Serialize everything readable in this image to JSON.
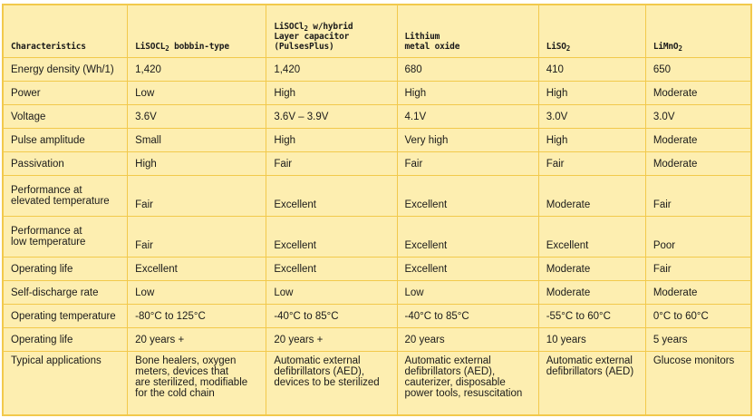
{
  "headers": {
    "characteristics": "Characteristics",
    "bobbin_main": "LiSOCL",
    "bobbin_sub": "2",
    "bobbin_tail": " bobbin-type",
    "hybrid_line1_main": "LiSOCl",
    "hybrid_line1_sub": "2",
    "hybrid_line1_tail": " w/hybrid",
    "hybrid_line2": "Layer capacitor",
    "hybrid_line3": "(PulsesPlus)",
    "lmo_line1": "Lithium",
    "lmo_line2": "metal oxide",
    "liso2_main": "LiSO",
    "liso2_sub": "2",
    "limno2_main": "LiMnO",
    "limno2_sub": "2"
  },
  "rows": [
    {
      "label": "Energy density (Wh/1)",
      "c1": "1,420",
      "c2": "1,420",
      "c3": "680",
      "c4": "410",
      "c5": "650"
    },
    {
      "label": "Power",
      "c1": "Low",
      "c2": "High",
      "c3": "High",
      "c4": "High",
      "c5": "Moderate"
    },
    {
      "label": "Voltage",
      "c1": "3.6V",
      "c2": "3.6V – 3.9V",
      "c3": "4.1V",
      "c4": "3.0V",
      "c5": "3.0V"
    },
    {
      "label": "Pulse amplitude",
      "c1": "Small",
      "c2": "High",
      "c3": "Very high",
      "c4": "High",
      "c5": "Moderate"
    },
    {
      "label": "Passivation",
      "c1": "High",
      "c2": "Fair",
      "c3": "Fair",
      "c4": "Fair",
      "c5": "Moderate"
    },
    {
      "label_line1": "Performance at",
      "label_line2": "elevated temperature",
      "c1": "Fair",
      "c2": "Excellent",
      "c3": "Excellent",
      "c4": "Moderate",
      "c5": "Fair"
    },
    {
      "label_line1": "Performance at",
      "label_line2": "low temperature",
      "c1": "Fair",
      "c2": "Excellent",
      "c3": "Excellent",
      "c4": "Excellent",
      "c5": "Poor"
    },
    {
      "label": "Operating life",
      "c1": "Excellent",
      "c2": "Excellent",
      "c3": "Excellent",
      "c4": "Moderate",
      "c5": "Fair"
    },
    {
      "label": "Self-discharge rate",
      "c1": "Low",
      "c2": "Low",
      "c3": "Low",
      "c4": "Moderate",
      "c5": "Moderate"
    },
    {
      "label": "Operating temperature",
      "c1": "-80°C to 125°C",
      "c2": "-40°C to 85°C",
      "c3": "-40°C to 85°C",
      "c4": "-55°C to 60°C",
      "c5": "0°C to 60°C"
    },
    {
      "label": "Operating life",
      "c1": "20 years +",
      "c2": "20 years +",
      "c3": "20 years",
      "c4": "10 years",
      "c5": "5 years"
    },
    {
      "label": "Typical applications",
      "c1_lines": [
        "Bone healers, oxygen",
        "meters, devices that",
        "are sterilized, modifiable",
        "for the cold chain"
      ],
      "c2_lines": [
        "Automatic external",
        "defibrillators (AED),",
        "devices to be sterilized"
      ],
      "c3_lines": [
        "Automatic external",
        "defibrillators (AED),",
        "cauterizer, disposable",
        "power tools, resuscitation"
      ],
      "c4_lines": [
        "Automatic external",
        "defibrillators (AED)"
      ],
      "c5_lines": [
        "Glucose monitors"
      ]
    }
  ]
}
